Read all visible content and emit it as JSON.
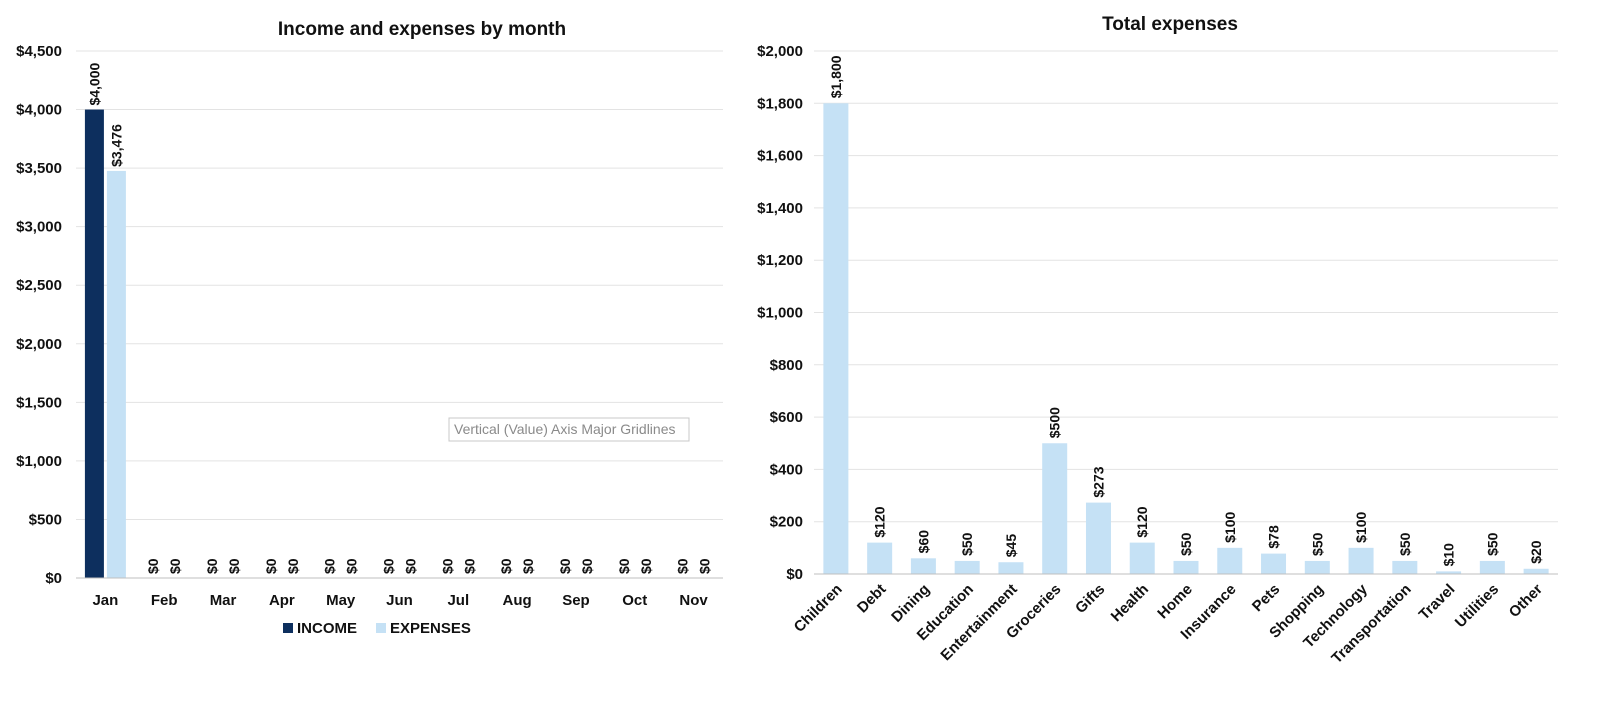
{
  "colors": {
    "income": "#0d2f5e",
    "expenses": "#c5e1f5"
  },
  "tooltip": "Vertical (Value) Axis Major Gridlines",
  "chart_data": [
    {
      "type": "bar",
      "title": "Income and expenses by month",
      "categories": [
        "Jan",
        "Feb",
        "Mar",
        "Apr",
        "May",
        "Jun",
        "Jul",
        "Aug",
        "Sep",
        "Oct",
        "Nov"
      ],
      "series": [
        {
          "name": "INCOME",
          "values": [
            4000,
            0,
            0,
            0,
            0,
            0,
            0,
            0,
            0,
            0,
            0
          ],
          "labels": [
            "$4,000",
            "$0",
            "$0",
            "$0",
            "$0",
            "$0",
            "$0",
            "$0",
            "$0",
            "$0",
            "$0"
          ]
        },
        {
          "name": "EXPENSES",
          "values": [
            3476,
            0,
            0,
            0,
            0,
            0,
            0,
            0,
            0,
            0,
            0
          ],
          "labels": [
            "$3,476",
            "$0",
            "$0",
            "$0",
            "$0",
            "$0",
            "$0",
            "$0",
            "$0",
            "$0",
            "$0"
          ]
        }
      ],
      "ylim": [
        0,
        4500
      ],
      "yticks": [
        0,
        500,
        1000,
        1500,
        2000,
        2500,
        3000,
        3500,
        4000,
        4500
      ],
      "ytick_labels": [
        "$0",
        "$500",
        "$1,000",
        "$1,500",
        "$2,000",
        "$2,500",
        "$3,000",
        "$3,500",
        "$4,000",
        "$4,500"
      ],
      "grid": true,
      "legend": "bottom"
    },
    {
      "type": "bar",
      "title": "Total expenses",
      "categories": [
        "Children",
        "Debt",
        "Dining",
        "Education",
        "Entertainment",
        "Groceries",
        "Gifts",
        "Health",
        "Home",
        "Insurance",
        "Pets",
        "Shopping",
        "Technology",
        "Transportation",
        "Travel",
        "Utilities",
        "Other"
      ],
      "values": [
        1800,
        120,
        60,
        50,
        45,
        500,
        273,
        120,
        50,
        100,
        78,
        50,
        100,
        50,
        10,
        50,
        20
      ],
      "labels": [
        "$1,800",
        "$120",
        "$60",
        "$50",
        "$45",
        "$500",
        "$273",
        "$120",
        "$50",
        "$100",
        "$78",
        "$50",
        "$100",
        "$50",
        "$10",
        "$50",
        "$20"
      ],
      "ylim": [
        0,
        2000
      ],
      "yticks": [
        0,
        200,
        400,
        600,
        800,
        1000,
        1200,
        1400,
        1600,
        1800,
        2000
      ],
      "ytick_labels": [
        "$0",
        "$200",
        "$400",
        "$600",
        "$800",
        "$1,000",
        "$1,200",
        "$1,400",
        "$1,600",
        "$1,800",
        "$2,000"
      ],
      "grid": true
    }
  ]
}
